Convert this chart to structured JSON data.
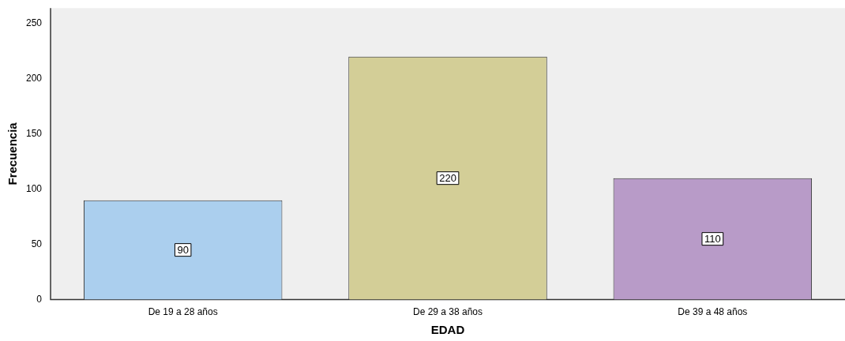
{
  "chart_data": {
    "type": "bar",
    "xlabel": "EDAD",
    "ylabel": "Frecuencia",
    "categories": [
      "De 19 a 28 años",
      "De 29 a 38 años",
      "De 39 a 48 años"
    ],
    "values": [
      90,
      220,
      110
    ],
    "colors": [
      "#abcfee",
      "#d3ce97",
      "#b89bc8"
    ],
    "ylim": [
      0,
      264
    ],
    "yticks": [
      0,
      50,
      100,
      150,
      200,
      250
    ],
    "grid": false,
    "legend": false,
    "data_labels": true
  }
}
